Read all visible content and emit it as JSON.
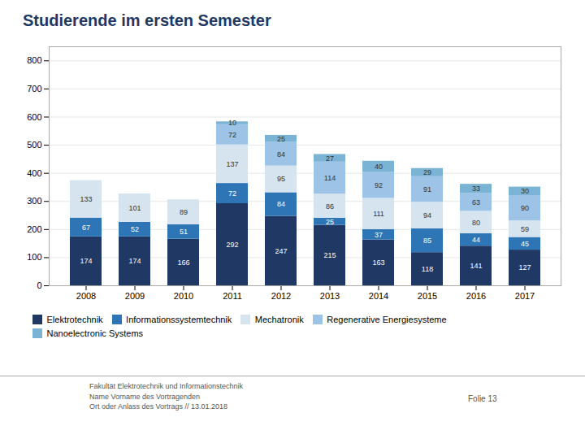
{
  "chart_data": {
    "type": "bar",
    "stacked": true,
    "title": "Studierende im ersten Semester",
    "categories": [
      "2008",
      "2009",
      "2010",
      "2011",
      "2012",
      "2013",
      "2014",
      "2015",
      "2016",
      "2017"
    ],
    "series": [
      {
        "name": "Elektrotechnik",
        "color": "#1f3864",
        "values": [
          174,
          174,
          166,
          292,
          247,
          215,
          163,
          118,
          141,
          127
        ]
      },
      {
        "name": "Informationssystemtechnik",
        "color": "#2e75b6",
        "values": [
          67,
          52,
          51,
          72,
          84,
          25,
          37,
          85,
          44,
          45
        ]
      },
      {
        "name": "Mechatronik",
        "color": "#d6e4f0",
        "values": [
          133,
          101,
          89,
          137,
          95,
          86,
          111,
          94,
          80,
          59
        ]
      },
      {
        "name": "Regenerative Energiesysteme",
        "color": "#9dc3e6",
        "values": [
          0,
          0,
          0,
          72,
          84,
          114,
          92,
          91,
          63,
          90
        ]
      },
      {
        "name": "Nanoelectronic Systems",
        "color": "#7ab3d4",
        "values": [
          0,
          0,
          0,
          10,
          25,
          27,
          40,
          29,
          33,
          30
        ]
      }
    ],
    "ylim": [
      0,
      850
    ],
    "yticks": [
      0,
      100,
      200,
      300,
      400,
      500,
      600,
      700,
      800
    ],
    "grid": true,
    "data_labels": true,
    "legend": "bottom",
    "annotations": [
      "Fakultät Elektrotechnik und Informationstechnik\nName Vorname des Vortragenden\nOrt oder Anlass des Vortrags // 13.01.2018",
      "Folie 13"
    ]
  }
}
